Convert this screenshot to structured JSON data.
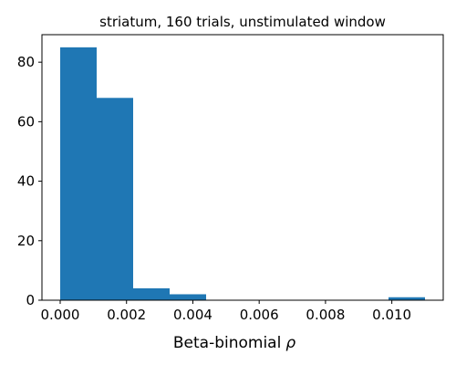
{
  "chart_data": {
    "type": "bar",
    "title": "striatum, 160 trials, unstimulated window",
    "xlabel": "Beta-binomial",
    "xlabel_symbol": "ρ",
    "ylabel": "",
    "bin_edges": [
      0.0,
      0.0011,
      0.0022,
      0.0033,
      0.0044,
      0.0055,
      0.0066,
      0.0077,
      0.0088,
      0.0099,
      0.011
    ],
    "counts": [
      85,
      68,
      4,
      2,
      0,
      0,
      0,
      0,
      0,
      1
    ],
    "xlim": [
      -0.00055,
      0.01155
    ],
    "ylim": [
      0,
      89.25
    ],
    "xticks": [
      0.0,
      0.002,
      0.004,
      0.006,
      0.008,
      0.01
    ],
    "xtick_labels": [
      "0.000",
      "0.002",
      "0.004",
      "0.006",
      "0.008",
      "0.010"
    ],
    "yticks": [
      0,
      20,
      40,
      60,
      80
    ],
    "ytick_labels": [
      "0",
      "20",
      "40",
      "60",
      "80"
    ],
    "bar_color": "#1f77b4",
    "grid": false,
    "legend": "none"
  }
}
